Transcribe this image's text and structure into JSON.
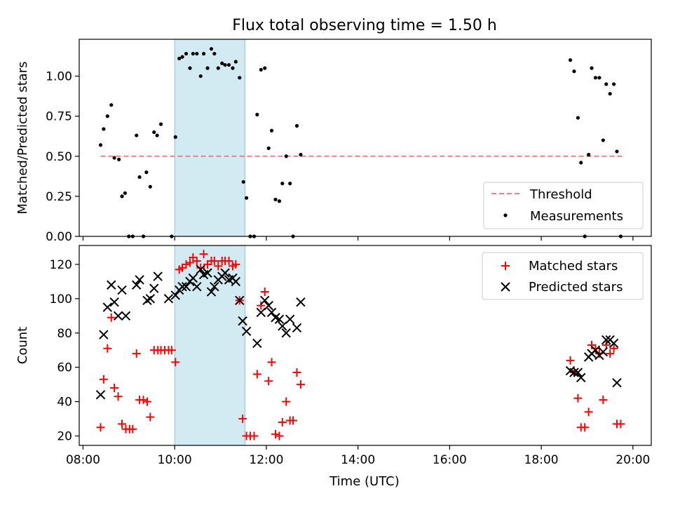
{
  "figure": {
    "title": "Flux total observing time = 1.50 h",
    "xlabel": "Time (UTC)"
  },
  "colors": {
    "threshold": "#f08080",
    "measurements": "#000000",
    "matched": "#ff0000",
    "predicted": "#000000",
    "highlight": "#add8e6"
  },
  "chart_data": [
    {
      "type": "scatter",
      "title": "Flux total observing time = 1.50 h",
      "xlabel": "",
      "ylabel": "Matched/Predicted stars",
      "x_unit": "hours UTC",
      "xlim": [
        "07:55",
        "20:24"
      ],
      "ylim": [
        0.0,
        1.23
      ],
      "yticks": [
        0.0,
        0.25,
        0.5,
        0.75,
        1.0
      ],
      "ytick_labels": [
        "0.00",
        "0.25",
        "0.50",
        "0.75",
        "1.00"
      ],
      "highlight_span": [
        "10:00",
        "11:32"
      ],
      "legend_position": "lower right",
      "threshold": {
        "name": "Threshold",
        "y": 0.5,
        "x_range": [
          "08:23",
          "19:46"
        ]
      },
      "series": [
        {
          "name": "Measurements",
          "marker": "dot",
          "points": [
            [
              "08:23",
              0.57
            ],
            [
              "08:27",
              0.67
            ],
            [
              "08:32",
              0.75
            ],
            [
              "08:37",
              0.82
            ],
            [
              "08:41",
              0.49
            ],
            [
              "08:47",
              0.48
            ],
            [
              "08:51",
              0.25
            ],
            [
              "08:55",
              0.27
            ],
            [
              "09:00",
              0.0
            ],
            [
              "09:05",
              0.0
            ],
            [
              "09:10",
              0.63
            ],
            [
              "09:14",
              0.37
            ],
            [
              "09:19",
              0.0
            ],
            [
              "09:23",
              0.4
            ],
            [
              "09:28",
              0.31
            ],
            [
              "09:33",
              0.65
            ],
            [
              "09:37",
              0.63
            ],
            [
              "09:42",
              0.7
            ],
            [
              "09:56",
              0.0
            ],
            [
              "10:01",
              0.62
            ],
            [
              "10:06",
              1.11
            ],
            [
              "10:10",
              1.12
            ],
            [
              "10:15",
              1.14
            ],
            [
              "10:20",
              1.05
            ],
            [
              "10:24",
              1.14
            ],
            [
              "10:29",
              1.14
            ],
            [
              "10:34",
              1.0
            ],
            [
              "10:38",
              1.14
            ],
            [
              "10:43",
              1.05
            ],
            [
              "10:48",
              1.17
            ],
            [
              "10:52",
              1.14
            ],
            [
              "10:57",
              1.05
            ],
            [
              "11:02",
              1.08
            ],
            [
              "11:06",
              1.07
            ],
            [
              "11:11",
              1.07
            ],
            [
              "11:16",
              1.05
            ],
            [
              "11:20",
              1.09
            ],
            [
              "11:25",
              0.99
            ],
            [
              "11:30",
              0.34
            ],
            [
              "11:34",
              0.24
            ],
            [
              "11:39",
              0.0
            ],
            [
              "11:44",
              0.0
            ],
            [
              "11:48",
              0.76
            ],
            [
              "11:53",
              1.04
            ],
            [
              "11:58",
              1.05
            ],
            [
              "12:03",
              0.55
            ],
            [
              "12:07",
              0.66
            ],
            [
              "12:12",
              0.23
            ],
            [
              "12:17",
              0.22
            ],
            [
              "12:21",
              0.33
            ],
            [
              "12:26",
              0.5
            ],
            [
              "12:31",
              0.33
            ],
            [
              "12:35",
              0.0
            ],
            [
              "12:40",
              0.69
            ],
            [
              "12:45",
              0.51
            ],
            [
              "18:38",
              1.1
            ],
            [
              "18:43",
              1.03
            ],
            [
              "18:48",
              0.74
            ],
            [
              "18:52",
              0.46
            ],
            [
              "18:57",
              0.0
            ],
            [
              "19:02",
              0.51
            ],
            [
              "19:06",
              1.05
            ],
            [
              "19:11",
              0.99
            ],
            [
              "19:16",
              0.99
            ],
            [
              "19:21",
              0.6
            ],
            [
              "19:25",
              0.95
            ],
            [
              "19:30",
              0.89
            ],
            [
              "19:35",
              0.95
            ],
            [
              "19:39",
              0.53
            ],
            [
              "19:44",
              0.0
            ]
          ]
        }
      ]
    },
    {
      "type": "scatter",
      "title": "",
      "xlabel": "Time (UTC)",
      "ylabel": "Count",
      "x_unit": "hours UTC",
      "xlim": [
        "07:55",
        "20:24"
      ],
      "ylim": [
        14.5,
        131
      ],
      "yticks": [
        20,
        40,
        60,
        80,
        100,
        120
      ],
      "ytick_labels": [
        "20",
        "40",
        "60",
        "80",
        "100",
        "120"
      ],
      "xticks": [
        "08:00",
        "10:00",
        "12:00",
        "14:00",
        "16:00",
        "18:00",
        "20:00"
      ],
      "xtick_labels": [
        "08:00",
        "10:00",
        "12:00",
        "14:00",
        "16:00",
        "18:00",
        "20:00"
      ],
      "highlight_span": [
        "10:00",
        "11:32"
      ],
      "legend_position": "upper right",
      "series": [
        {
          "name": "Matched stars",
          "marker": "plus",
          "points": [
            [
              "08:23",
              25
            ],
            [
              "08:27",
              53
            ],
            [
              "08:32",
              71
            ],
            [
              "08:37",
              89
            ],
            [
              "08:41",
              48
            ],
            [
              "08:46",
              43
            ],
            [
              "08:51",
              27
            ],
            [
              "08:56",
              24
            ],
            [
              "09:01",
              24
            ],
            [
              "09:05",
              24
            ],
            [
              "09:10",
              68
            ],
            [
              "09:14",
              41
            ],
            [
              "09:19",
              41
            ],
            [
              "09:24",
              40
            ],
            [
              "09:28",
              31
            ],
            [
              "09:33",
              70
            ],
            [
              "09:38",
              70
            ],
            [
              "09:42",
              70
            ],
            [
              "09:47",
              70
            ],
            [
              "09:52",
              70
            ],
            [
              "09:56",
              70
            ],
            [
              "10:01",
              63
            ],
            [
              "10:06",
              117
            ],
            [
              "10:10",
              118
            ],
            [
              "10:15",
              120
            ],
            [
              "10:20",
              121
            ],
            [
              "10:24",
              124
            ],
            [
              "10:29",
              122
            ],
            [
              "10:34",
              118
            ],
            [
              "10:38",
              126
            ],
            [
              "10:43",
              120
            ],
            [
              "10:48",
              122
            ],
            [
              "10:52",
              122
            ],
            [
              "10:57",
              119
            ],
            [
              "11:02",
              122
            ],
            [
              "11:06",
              122
            ],
            [
              "11:11",
              122
            ],
            [
              "11:16",
              119
            ],
            [
              "11:20",
              120
            ],
            [
              "11:25",
              99
            ],
            [
              "11:29",
              30
            ],
            [
              "11:34",
              20
            ],
            [
              "11:39",
              20
            ],
            [
              "11:44",
              20
            ],
            [
              "11:48",
              56
            ],
            [
              "11:53",
              96
            ],
            [
              "11:58",
              104
            ],
            [
              "12:03",
              52
            ],
            [
              "12:07",
              63
            ],
            [
              "12:12",
              21
            ],
            [
              "12:17",
              20
            ],
            [
              "12:21",
              28
            ],
            [
              "12:26",
              40
            ],
            [
              "12:31",
              29
            ],
            [
              "12:35",
              29
            ],
            [
              "12:40",
              57
            ],
            [
              "12:45",
              50
            ],
            [
              "18:38",
              64
            ],
            [
              "18:43",
              57
            ],
            [
              "18:48",
              42
            ],
            [
              "18:52",
              25
            ],
            [
              "18:57",
              25
            ],
            [
              "19:02",
              34
            ],
            [
              "19:06",
              73
            ],
            [
              "19:11",
              71
            ],
            [
              "19:16",
              68
            ],
            [
              "19:21",
              41
            ],
            [
              "19:25",
              73
            ],
            [
              "19:30",
              68
            ],
            [
              "19:35",
              71
            ],
            [
              "19:39",
              27
            ],
            [
              "19:44",
              27
            ]
          ]
        },
        {
          "name": "Predicted stars",
          "marker": "x",
          "points": [
            [
              "08:23",
              44
            ],
            [
              "08:27",
              79
            ],
            [
              "08:32",
              95
            ],
            [
              "08:37",
              108
            ],
            [
              "08:41",
              98
            ],
            [
              "08:46",
              90
            ],
            [
              "08:51",
              105
            ],
            [
              "08:56",
              90
            ],
            [
              "09:10",
              108
            ],
            [
              "09:14",
              111
            ],
            [
              "09:24",
              99
            ],
            [
              "09:28",
              100
            ],
            [
              "09:33",
              106
            ],
            [
              "09:38",
              113
            ],
            [
              "09:52",
              100
            ],
            [
              "10:01",
              102
            ],
            [
              "10:06",
              105
            ],
            [
              "10:10",
              107
            ],
            [
              "10:15",
              107
            ],
            [
              "10:20",
              110
            ],
            [
              "10:24",
              112
            ],
            [
              "10:29",
              107
            ],
            [
              "10:34",
              117
            ],
            [
              "10:38",
              114
            ],
            [
              "10:43",
              115
            ],
            [
              "10:48",
              104
            ],
            [
              "10:52",
              107
            ],
            [
              "10:57",
              111
            ],
            [
              "11:02",
              113
            ],
            [
              "11:06",
              115
            ],
            [
              "11:11",
              111
            ],
            [
              "11:16",
              112
            ],
            [
              "11:20",
              110
            ],
            [
              "11:25",
              99
            ],
            [
              "11:29",
              87
            ],
            [
              "11:34",
              81
            ],
            [
              "11:48",
              74
            ],
            [
              "11:53",
              92
            ],
            [
              "11:58",
              99
            ],
            [
              "12:03",
              96
            ],
            [
              "12:07",
              92
            ],
            [
              "12:12",
              89
            ],
            [
              "12:17",
              88
            ],
            [
              "12:21",
              84
            ],
            [
              "12:26",
              80
            ],
            [
              "12:31",
              88
            ],
            [
              "12:40",
              83
            ],
            [
              "12:45",
              98
            ],
            [
              "18:38",
              58
            ],
            [
              "18:43",
              57
            ],
            [
              "18:48",
              57
            ],
            [
              "18:52",
              54
            ],
            [
              "19:02",
              66
            ],
            [
              "19:06",
              68
            ],
            [
              "19:11",
              70
            ],
            [
              "19:16",
              67
            ],
            [
              "19:21",
              69
            ],
            [
              "19:25",
              76
            ],
            [
              "19:30",
              76
            ],
            [
              "19:35",
              74
            ],
            [
              "19:39",
              51
            ]
          ]
        }
      ]
    }
  ]
}
